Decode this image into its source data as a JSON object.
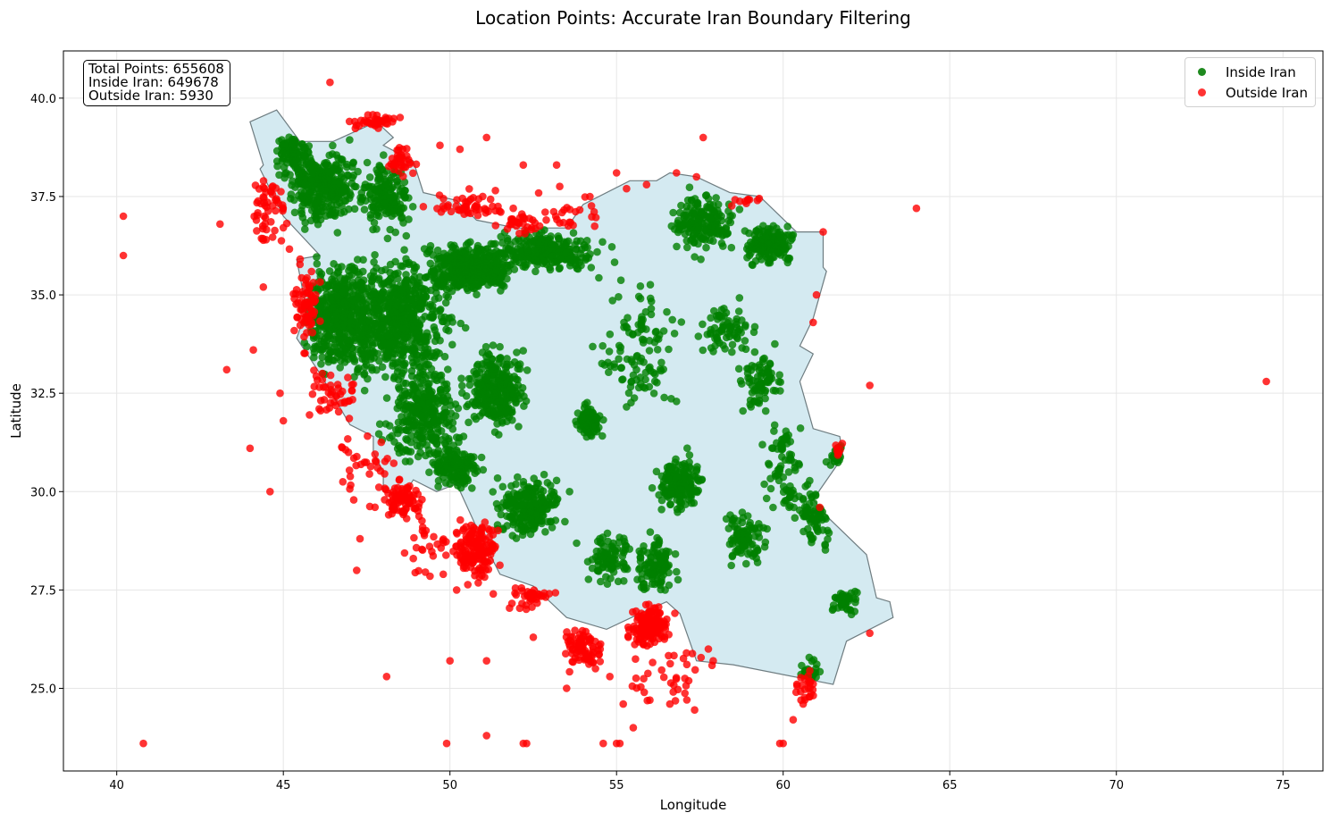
{
  "chart_data": {
    "type": "scatter",
    "title": "Location Points: Accurate Iran Boundary Filtering",
    "xlabel": "Longitude",
    "ylabel": "Latitude",
    "xlim": [
      38.4,
      76.2
    ],
    "ylim": [
      22.9,
      41.2
    ],
    "xticks": [
      40,
      45,
      50,
      55,
      60,
      65,
      70,
      75
    ],
    "yticks": [
      25.0,
      27.5,
      30.0,
      32.5,
      35.0,
      37.5,
      40.0
    ],
    "grid": true,
    "legend_position": "top-right",
    "boundary": {
      "name": "Iran boundary",
      "fill": "#d4eaf1",
      "stroke": "#6e7c80",
      "points": [
        [
          44.0,
          39.4
        ],
        [
          44.8,
          39.7
        ],
        [
          45.5,
          38.9
        ],
        [
          46.5,
          38.9
        ],
        [
          47.8,
          39.4
        ],
        [
          48.3,
          39.0
        ],
        [
          48.0,
          38.8
        ],
        [
          48.9,
          38.4
        ],
        [
          49.2,
          37.6
        ],
        [
          50.2,
          37.4
        ],
        [
          50.8,
          36.9
        ],
        [
          52.0,
          36.7
        ],
        [
          53.5,
          36.7
        ],
        [
          54.0,
          37.3
        ],
        [
          55.4,
          37.9
        ],
        [
          56.2,
          37.9
        ],
        [
          56.6,
          38.1
        ],
        [
          57.4,
          38.0
        ],
        [
          58.4,
          37.6
        ],
        [
          59.3,
          37.5
        ],
        [
          60.4,
          36.6
        ],
        [
          61.2,
          36.6
        ],
        [
          61.2,
          35.7
        ],
        [
          61.3,
          35.6
        ],
        [
          60.9,
          34.4
        ],
        [
          60.5,
          33.7
        ],
        [
          60.9,
          33.5
        ],
        [
          60.5,
          32.8
        ],
        [
          60.9,
          31.6
        ],
        [
          61.7,
          31.4
        ],
        [
          61.8,
          30.9
        ],
        [
          60.9,
          29.8
        ],
        [
          61.4,
          29.3
        ],
        [
          62.5,
          28.4
        ],
        [
          62.8,
          27.3
        ],
        [
          63.2,
          27.2
        ],
        [
          63.3,
          26.8
        ],
        [
          61.9,
          26.2
        ],
        [
          61.5,
          25.1
        ],
        [
          60.9,
          25.2
        ],
        [
          58.5,
          25.6
        ],
        [
          57.4,
          25.7
        ],
        [
          56.9,
          26.9
        ],
        [
          56.5,
          27.2
        ],
        [
          55.7,
          26.9
        ],
        [
          54.7,
          26.5
        ],
        [
          53.5,
          26.8
        ],
        [
          52.5,
          27.6
        ],
        [
          51.5,
          27.9
        ],
        [
          50.9,
          28.9
        ],
        [
          50.2,
          30.2
        ],
        [
          49.6,
          30.0
        ],
        [
          48.9,
          30.3
        ],
        [
          48.6,
          29.9
        ],
        [
          48.0,
          30.0
        ],
        [
          48.0,
          30.5
        ],
        [
          47.7,
          31.0
        ],
        [
          47.7,
          31.4
        ],
        [
          47.0,
          31.7
        ],
        [
          46.1,
          33.0
        ],
        [
          45.4,
          33.9
        ],
        [
          45.7,
          34.6
        ],
        [
          45.4,
          35.9
        ],
        [
          46.1,
          36.0
        ],
        [
          45.0,
          37.0
        ],
        [
          44.3,
          38.2
        ],
        [
          44.4,
          38.3
        ]
      ]
    },
    "series": [
      {
        "name": "Inside Iran",
        "color": "#008000",
        "clusters": [
          {
            "cx": 46.8,
            "cy": 34.4,
            "sx": 1.0,
            "sy": 1.1,
            "n": 500
          },
          {
            "cx": 48.6,
            "cy": 34.4,
            "sx": 1.2,
            "sy": 1.3,
            "n": 550
          },
          {
            "cx": 50.6,
            "cy": 35.7,
            "sx": 1.1,
            "sy": 0.5,
            "n": 420
          },
          {
            "cx": 52.8,
            "cy": 36.1,
            "sx": 1.3,
            "sy": 0.4,
            "n": 260
          },
          {
            "cx": 46.2,
            "cy": 37.8,
            "sx": 0.9,
            "sy": 0.8,
            "n": 320
          },
          {
            "cx": 45.3,
            "cy": 38.6,
            "sx": 0.4,
            "sy": 0.4,
            "n": 90
          },
          {
            "cx": 48.1,
            "cy": 37.5,
            "sx": 0.6,
            "sy": 0.7,
            "n": 160
          },
          {
            "cx": 49.2,
            "cy": 32.0,
            "sx": 0.9,
            "sy": 1.0,
            "n": 300
          },
          {
            "cx": 51.4,
            "cy": 32.6,
            "sx": 0.7,
            "sy": 0.8,
            "n": 300
          },
          {
            "cx": 52.4,
            "cy": 29.6,
            "sx": 0.8,
            "sy": 0.6,
            "n": 230
          },
          {
            "cx": 50.2,
            "cy": 30.6,
            "sx": 0.6,
            "sy": 0.4,
            "n": 140
          },
          {
            "cx": 54.2,
            "cy": 31.8,
            "sx": 0.3,
            "sy": 0.4,
            "n": 90
          },
          {
            "cx": 59.6,
            "cy": 36.3,
            "sx": 0.6,
            "sy": 0.4,
            "n": 170
          },
          {
            "cx": 57.6,
            "cy": 36.8,
            "sx": 0.8,
            "sy": 0.6,
            "n": 180
          },
          {
            "cx": 56.9,
            "cy": 30.2,
            "sx": 0.6,
            "sy": 0.6,
            "n": 160
          },
          {
            "cx": 56.2,
            "cy": 28.1,
            "sx": 0.5,
            "sy": 0.6,
            "n": 110
          },
          {
            "cx": 58.9,
            "cy": 28.8,
            "sx": 0.5,
            "sy": 0.6,
            "n": 90
          },
          {
            "cx": 54.8,
            "cy": 28.3,
            "sx": 0.6,
            "sy": 0.5,
            "n": 90
          },
          {
            "cx": 59.3,
            "cy": 32.8,
            "sx": 0.5,
            "sy": 0.6,
            "n": 80
          },
          {
            "cx": 58.3,
            "cy": 34.1,
            "sx": 0.7,
            "sy": 0.5,
            "n": 70
          },
          {
            "cx": 61.0,
            "cy": 29.4,
            "sx": 0.4,
            "sy": 0.6,
            "n": 70
          },
          {
            "cx": 61.9,
            "cy": 27.2,
            "sx": 0.4,
            "sy": 0.3,
            "n": 40
          },
          {
            "cx": 60.8,
            "cy": 25.4,
            "sx": 0.3,
            "sy": 0.3,
            "n": 30
          },
          {
            "cx": 55.7,
            "cy": 33.6,
            "sx": 1.0,
            "sy": 1.3,
            "n": 110
          },
          {
            "cx": 60.1,
            "cy": 30.6,
            "sx": 0.6,
            "sy": 1.2,
            "n": 80
          },
          {
            "cx": 61.6,
            "cy": 30.9,
            "sx": 0.2,
            "sy": 0.3,
            "n": 25
          }
        ]
      },
      {
        "name": "Outside Iran",
        "color": "#ff0000",
        "clusters": [
          {
            "cx": 56.0,
            "cy": 26.6,
            "sx": 0.5,
            "sy": 0.4,
            "n": 170
          },
          {
            "cx": 50.8,
            "cy": 28.5,
            "sx": 0.5,
            "sy": 0.6,
            "n": 150
          },
          {
            "cx": 54.0,
            "cy": 26.0,
            "sx": 0.5,
            "sy": 0.4,
            "n": 80
          },
          {
            "cx": 48.6,
            "cy": 29.8,
            "sx": 0.5,
            "sy": 0.4,
            "n": 80
          },
          {
            "cx": 45.7,
            "cy": 34.7,
            "sx": 0.3,
            "sy": 0.8,
            "n": 70
          },
          {
            "cx": 46.5,
            "cy": 32.5,
            "sx": 0.7,
            "sy": 0.5,
            "n": 45
          },
          {
            "cx": 44.6,
            "cy": 37.2,
            "sx": 0.5,
            "sy": 0.9,
            "n": 55
          },
          {
            "cx": 47.8,
            "cy": 39.4,
            "sx": 0.6,
            "sy": 0.2,
            "n": 40
          },
          {
            "cx": 48.5,
            "cy": 38.4,
            "sx": 0.4,
            "sy": 0.3,
            "n": 35
          },
          {
            "cx": 50.5,
            "cy": 37.3,
            "sx": 0.9,
            "sy": 0.3,
            "n": 50
          },
          {
            "cx": 52.2,
            "cy": 36.8,
            "sx": 0.7,
            "sy": 0.2,
            "n": 30
          },
          {
            "cx": 52.4,
            "cy": 27.3,
            "sx": 0.6,
            "sy": 0.3,
            "n": 40
          },
          {
            "cx": 60.7,
            "cy": 25.0,
            "sx": 0.3,
            "sy": 0.3,
            "n": 25
          },
          {
            "cx": 47.5,
            "cy": 30.6,
            "sx": 0.8,
            "sy": 0.8,
            "n": 35
          },
          {
            "cx": 49.4,
            "cy": 28.7,
            "sx": 0.8,
            "sy": 0.7,
            "n": 30
          },
          {
            "cx": 53.6,
            "cy": 37.1,
            "sx": 0.8,
            "sy": 0.5,
            "n": 25
          },
          {
            "cx": 56.5,
            "cy": 25.3,
            "sx": 1.2,
            "sy": 0.7,
            "n": 35
          },
          {
            "cx": 58.9,
            "cy": 37.4,
            "sx": 0.5,
            "sy": 0.1,
            "n": 10
          },
          {
            "cx": 61.7,
            "cy": 31.1,
            "sx": 0.1,
            "sy": 0.2,
            "n": 8
          }
        ],
        "points": [
          [
            40.2,
            37.0
          ],
          [
            40.2,
            36.0
          ],
          [
            40.8,
            23.6
          ],
          [
            43.1,
            36.8
          ],
          [
            43.3,
            33.1
          ],
          [
            44.0,
            31.1
          ],
          [
            44.6,
            30.0
          ],
          [
            44.1,
            33.6
          ],
          [
            44.4,
            35.2
          ],
          [
            44.9,
            32.5
          ],
          [
            45.0,
            31.8
          ],
          [
            46.4,
            40.4
          ],
          [
            48.1,
            25.3
          ],
          [
            49.9,
            23.6
          ],
          [
            50.0,
            25.7
          ],
          [
            51.1,
            25.7
          ],
          [
            51.1,
            23.8
          ],
          [
            51.1,
            39.0
          ],
          [
            50.3,
            38.7
          ],
          [
            49.7,
            38.8
          ],
          [
            52.2,
            38.3
          ],
          [
            53.2,
            38.3
          ],
          [
            52.2,
            23.6
          ],
          [
            52.3,
            23.6
          ],
          [
            54.6,
            23.6
          ],
          [
            55.0,
            23.6
          ],
          [
            55.1,
            23.6
          ],
          [
            56.6,
            24.6
          ],
          [
            55.5,
            24.0
          ],
          [
            55.2,
            24.6
          ],
          [
            55.0,
            38.1
          ],
          [
            56.8,
            38.1
          ],
          [
            57.4,
            38.0
          ],
          [
            57.6,
            39.0
          ],
          [
            60.0,
            23.6
          ],
          [
            59.9,
            23.6
          ],
          [
            60.3,
            24.2
          ],
          [
            60.6,
            24.6
          ],
          [
            62.6,
            26.4
          ],
          [
            62.6,
            32.7
          ],
          [
            64.0,
            37.2
          ],
          [
            74.5,
            32.8
          ],
          [
            61.2,
            36.6
          ],
          [
            61.0,
            35.0
          ],
          [
            60.9,
            34.3
          ],
          [
            61.1,
            29.6
          ],
          [
            47.3,
            28.8
          ],
          [
            47.2,
            28.0
          ],
          [
            48.9,
            28.3
          ],
          [
            49.8,
            27.9
          ],
          [
            50.2,
            27.5
          ],
          [
            51.3,
            27.4
          ],
          [
            52.5,
            26.3
          ],
          [
            53.5,
            25.0
          ],
          [
            54.8,
            25.3
          ],
          [
            56.0,
            24.7
          ],
          [
            57.1,
            25.9
          ],
          [
            57.9,
            25.7
          ],
          [
            55.3,
            37.7
          ],
          [
            55.9,
            37.8
          ],
          [
            54.2,
            37.5
          ],
          [
            51.9,
            37.2
          ]
        ]
      }
    ]
  },
  "stats": {
    "total": "Total Points: 655608",
    "inside": "Inside Iran: 649678",
    "outside": "Outside Iran: 5930"
  },
  "legend": {
    "inside_label": "Inside Iran",
    "outside_label": "Outside Iran"
  }
}
